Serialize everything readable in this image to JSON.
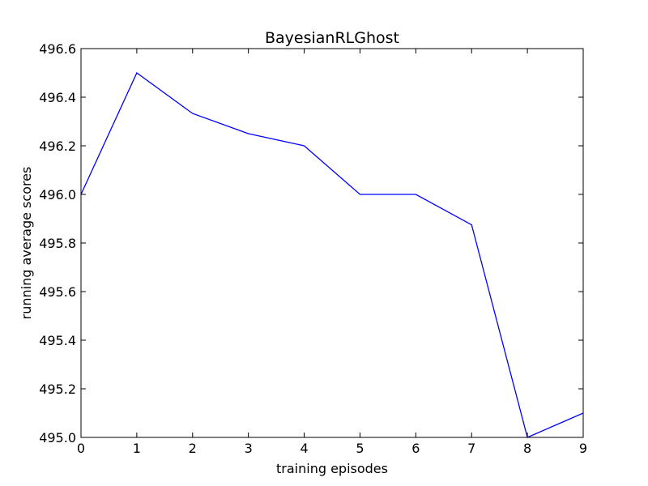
{
  "chart_data": {
    "type": "line",
    "title": "BayesianRLGhost",
    "xlabel": "training episodes",
    "ylabel": "running average scores",
    "x": [
      0,
      1,
      2,
      3,
      4,
      5,
      6,
      7,
      8,
      9
    ],
    "series": [
      {
        "color": "#0000ff",
        "values": [
          496.0,
          496.5,
          496.333,
          496.25,
          496.2,
          496.0,
          496.0,
          495.875,
          495.0,
          495.1
        ]
      }
    ],
    "xlim": [
      0,
      9
    ],
    "ylim": [
      495.0,
      496.6
    ],
    "xticks": [
      0,
      1,
      2,
      3,
      4,
      5,
      6,
      7,
      8,
      9
    ],
    "xtick_labels": [
      "0",
      "1",
      "2",
      "3",
      "4",
      "5",
      "6",
      "7",
      "8",
      "9"
    ],
    "yticks": [
      495.0,
      495.2,
      495.4,
      495.6,
      495.8,
      496.0,
      496.2,
      496.4,
      496.6
    ],
    "ytick_labels": [
      "495.0",
      "495.2",
      "495.4",
      "495.6",
      "495.8",
      "496.0",
      "496.2",
      "496.4",
      "496.6"
    ],
    "grid": false,
    "legend": "none"
  }
}
